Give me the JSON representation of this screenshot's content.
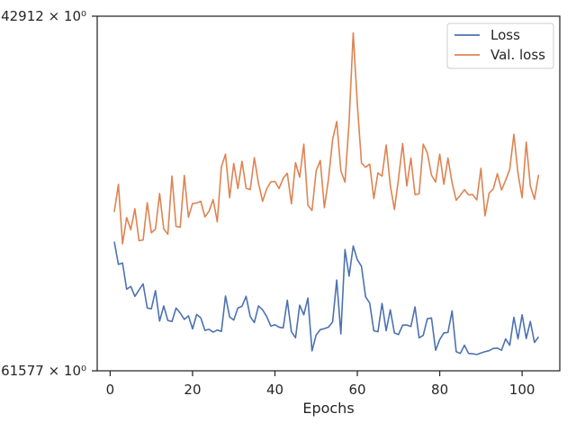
{
  "chart_data": {
    "type": "line",
    "title": "",
    "xlabel": "Epochs",
    "ylabel": "",
    "xlim": [
      -3.15,
      109.15
    ],
    "ylim": [
      0.0,
      1.0
    ],
    "x_ticks": [
      0,
      20,
      40,
      60,
      80,
      100
    ],
    "y_tick_labels": [
      {
        "value": 1.0,
        "label": "42912 × 10⁰"
      },
      {
        "value": 0.0,
        "label": "61577 × 10⁰"
      }
    ],
    "grid": false,
    "legend_position": "upper-right",
    "series": [
      {
        "name": "Loss",
        "color": "#4c72b0",
        "x": [
          1,
          2,
          3,
          4,
          5,
          6,
          7,
          8,
          9,
          10,
          11,
          12,
          13,
          14,
          15,
          16,
          17,
          18,
          19,
          20,
          21,
          22,
          23,
          24,
          25,
          26,
          27,
          28,
          29,
          30,
          31,
          32,
          33,
          34,
          35,
          36,
          37,
          38,
          39,
          40,
          41,
          42,
          43,
          44,
          45,
          46,
          47,
          48,
          49,
          50,
          51,
          52,
          53,
          54,
          55,
          56,
          57,
          58,
          59,
          60,
          61,
          62,
          63,
          64,
          65,
          66,
          67,
          68,
          69,
          70,
          71,
          72,
          73,
          74,
          75,
          76,
          77,
          78,
          79,
          80,
          81,
          82,
          83,
          84,
          85,
          86,
          87,
          88,
          89,
          90,
          91,
          92,
          93,
          94,
          95,
          96,
          97,
          98,
          99,
          100,
          101,
          102,
          103,
          104
        ],
        "values": [
          0.364,
          0.3,
          0.304,
          0.23,
          0.238,
          0.21,
          0.228,
          0.245,
          0.177,
          0.175,
          0.226,
          0.14,
          0.183,
          0.142,
          0.139,
          0.177,
          0.163,
          0.145,
          0.155,
          0.118,
          0.159,
          0.149,
          0.114,
          0.117,
          0.109,
          0.115,
          0.111,
          0.211,
          0.152,
          0.143,
          0.177,
          0.182,
          0.21,
          0.153,
          0.136,
          0.183,
          0.172,
          0.153,
          0.126,
          0.13,
          0.123,
          0.121,
          0.199,
          0.11,
          0.093,
          0.185,
          0.158,
          0.205,
          0.056,
          0.101,
          0.116,
          0.119,
          0.123,
          0.138,
          0.256,
          0.104,
          0.342,
          0.267,
          0.352,
          0.313,
          0.295,
          0.209,
          0.191,
          0.113,
          0.11,
          0.19,
          0.113,
          0.172,
          0.107,
          0.102,
          0.129,
          0.129,
          0.125,
          0.18,
          0.093,
          0.1,
          0.147,
          0.149,
          0.058,
          0.088,
          0.107,
          0.108,
          0.169,
          0.054,
          0.049,
          0.072,
          0.049,
          0.048,
          0.046,
          0.05,
          0.054,
          0.057,
          0.063,
          0.064,
          0.058,
          0.09,
          0.072,
          0.151,
          0.09,
          0.158,
          0.091,
          0.139,
          0.08,
          0.096
        ]
      },
      {
        "name": "Val. loss",
        "color": "#dd8452",
        "x": [
          1,
          2,
          3,
          4,
          5,
          6,
          7,
          8,
          9,
          10,
          11,
          12,
          13,
          14,
          15,
          16,
          17,
          18,
          19,
          20,
          21,
          22,
          23,
          24,
          25,
          26,
          27,
          28,
          29,
          30,
          31,
          32,
          33,
          34,
          35,
          36,
          37,
          38,
          39,
          40,
          41,
          42,
          43,
          44,
          45,
          46,
          47,
          48,
          49,
          50,
          51,
          52,
          53,
          54,
          55,
          56,
          57,
          58,
          59,
          60,
          61,
          62,
          63,
          64,
          65,
          66,
          67,
          68,
          69,
          70,
          71,
          72,
          73,
          74,
          75,
          76,
          77,
          78,
          79,
          80,
          81,
          82,
          83,
          84,
          85,
          86,
          87,
          88,
          89,
          90,
          91,
          92,
          93,
          94,
          95,
          96,
          97,
          98,
          99,
          100,
          101,
          102,
          103,
          104
        ],
        "values": [
          0.448,
          0.526,
          0.358,
          0.432,
          0.398,
          0.457,
          0.367,
          0.369,
          0.474,
          0.389,
          0.4,
          0.5,
          0.4,
          0.385,
          0.549,
          0.407,
          0.405,
          0.551,
          0.433,
          0.472,
          0.473,
          0.478,
          0.434,
          0.45,
          0.483,
          0.42,
          0.575,
          0.611,
          0.488,
          0.585,
          0.514,
          0.591,
          0.515,
          0.511,
          0.601,
          0.529,
          0.478,
          0.513,
          0.533,
          0.534,
          0.514,
          0.543,
          0.557,
          0.471,
          0.587,
          0.546,
          0.639,
          0.467,
          0.452,
          0.564,
          0.593,
          0.46,
          0.541,
          0.652,
          0.703,
          0.564,
          0.532,
          0.702,
          0.953,
          0.752,
          0.586,
          0.574,
          0.583,
          0.486,
          0.558,
          0.549,
          0.637,
          0.523,
          0.455,
          0.542,
          0.641,
          0.521,
          0.6,
          0.497,
          0.499,
          0.639,
          0.614,
          0.552,
          0.532,
          0.611,
          0.526,
          0.6,
          0.53,
          0.481,
          0.495,
          0.511,
          0.496,
          0.497,
          0.482,
          0.571,
          0.437,
          0.501,
          0.513,
          0.556,
          0.51,
          0.537,
          0.568,
          0.667,
          0.557,
          0.488,
          0.645,
          0.521,
          0.484,
          0.553
        ]
      }
    ]
  }
}
